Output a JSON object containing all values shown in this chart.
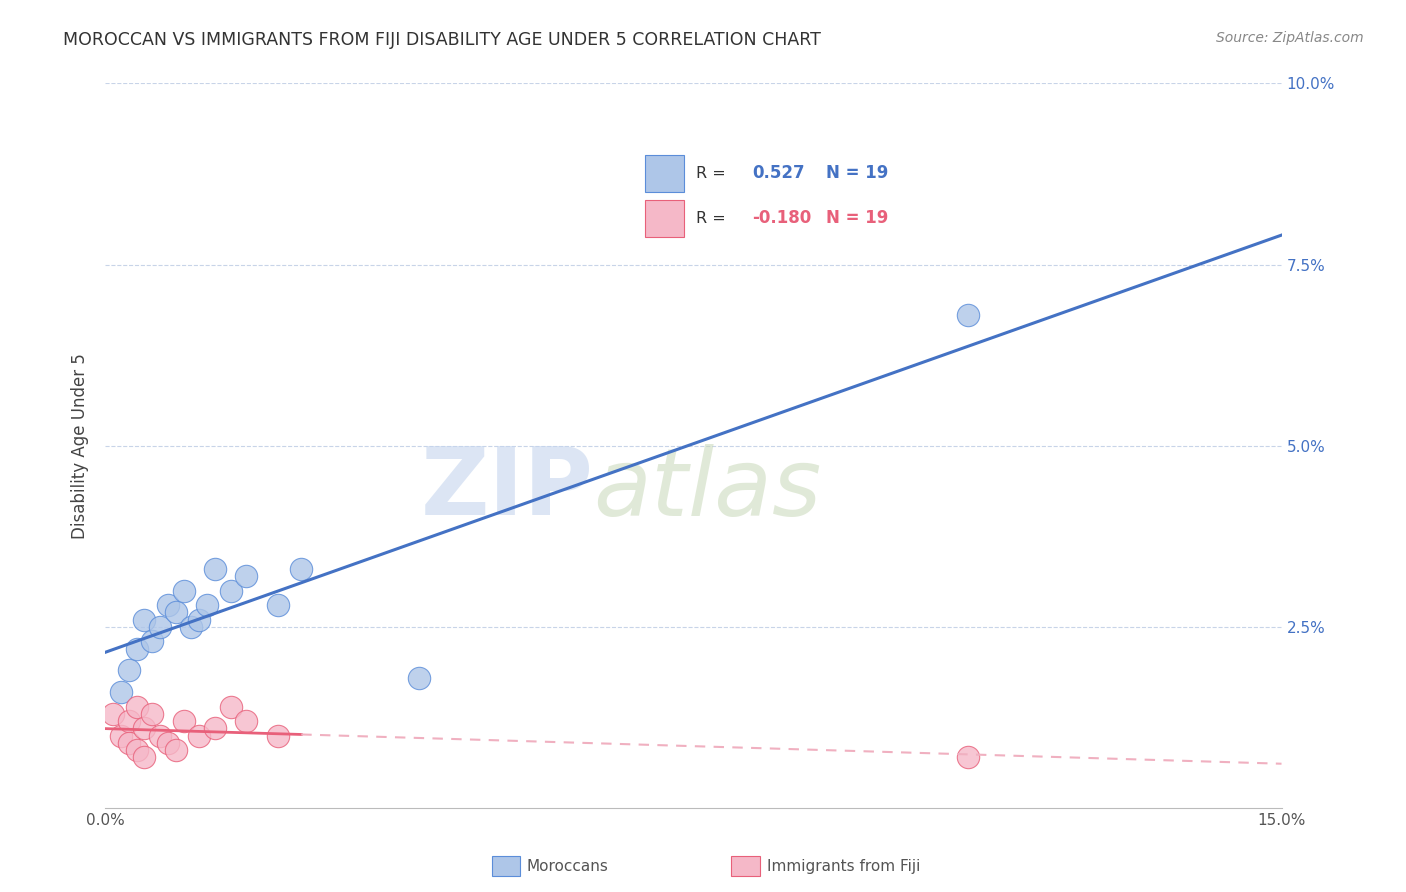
{
  "title": "MOROCCAN VS IMMIGRANTS FROM FIJI DISABILITY AGE UNDER 5 CORRELATION CHART",
  "source": "Source: ZipAtlas.com",
  "ylabel": "Disability Age Under 5",
  "xlim": [
    0.0,
    0.15
  ],
  "ylim": [
    0.0,
    0.1
  ],
  "xticks": [
    0.0,
    0.03,
    0.06,
    0.09,
    0.12,
    0.15
  ],
  "yticks": [
    0.0,
    0.025,
    0.05,
    0.075,
    0.1
  ],
  "moroccan_x": [
    0.002,
    0.003,
    0.004,
    0.005,
    0.006,
    0.007,
    0.008,
    0.009,
    0.01,
    0.011,
    0.012,
    0.013,
    0.014,
    0.016,
    0.018,
    0.022,
    0.025,
    0.04,
    0.11
  ],
  "moroccan_y": [
    0.016,
    0.019,
    0.022,
    0.026,
    0.023,
    0.025,
    0.028,
    0.027,
    0.03,
    0.025,
    0.026,
    0.028,
    0.033,
    0.03,
    0.032,
    0.028,
    0.033,
    0.018,
    0.068
  ],
  "fiji_x": [
    0.001,
    0.002,
    0.003,
    0.003,
    0.004,
    0.004,
    0.005,
    0.005,
    0.006,
    0.007,
    0.008,
    0.009,
    0.01,
    0.012,
    0.014,
    0.016,
    0.018,
    0.022,
    0.11
  ],
  "fiji_y": [
    0.013,
    0.01,
    0.012,
    0.009,
    0.014,
    0.008,
    0.011,
    0.007,
    0.013,
    0.01,
    0.009,
    0.008,
    0.012,
    0.01,
    0.011,
    0.014,
    0.012,
    0.01,
    0.007
  ],
  "moroccan_color": "#aec6e8",
  "fiji_color": "#f5b8c8",
  "moroccan_edge_color": "#5b8dd9",
  "fiji_edge_color": "#e8607a",
  "moroccan_line_color": "#4472c4",
  "fiji_line_color": "#e8607a",
  "fiji_line_dashed_color": "#f0b0c0",
  "r_moroccan": 0.527,
  "r_fiji": -0.18,
  "n_moroccan": 19,
  "n_fiji": 19,
  "watermark_zip": "ZIP",
  "watermark_atlas": "atlas",
  "background_color": "#ffffff",
  "grid_color": "#c8d4e8",
  "legend_text_color": "#4472c4",
  "fiji_legend_text_color": "#e8607a"
}
